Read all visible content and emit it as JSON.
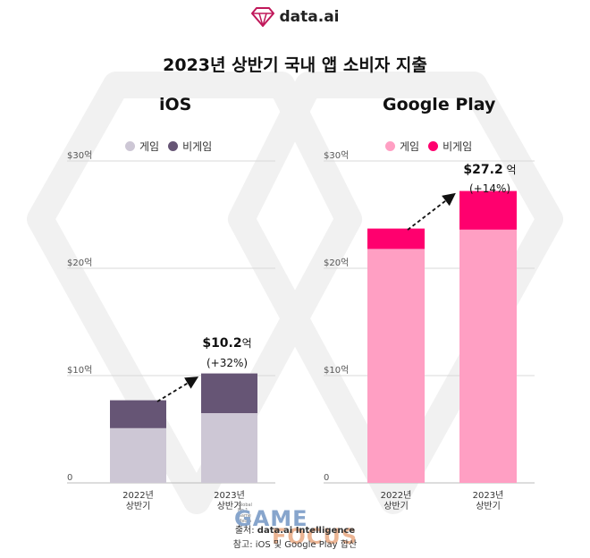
{
  "brand": {
    "name": "data.ai",
    "logo_icon": "diamond-logo-icon"
  },
  "title": "2023년 상반기 국내 앱 소비자 지출",
  "chart_data": [
    {
      "type": "bar",
      "stacked": true,
      "panel_title": "iOS",
      "categories": [
        [
          "2022년",
          "상반기"
        ],
        [
          "2023년",
          "상반기"
        ]
      ],
      "series": [
        {
          "name": "게임",
          "values": [
            5.1,
            6.5
          ],
          "color": "#cdc7d5"
        },
        {
          "name": "비게임",
          "values": [
            2.6,
            3.7
          ],
          "color": "#665575"
        }
      ],
      "y_ticks": [
        {
          "value": 0,
          "label": "0"
        },
        {
          "value": 10,
          "label": "$10억"
        },
        {
          "value": 20,
          "label": "$20억"
        },
        {
          "value": 30,
          "label": "$30억"
        }
      ],
      "ylim": [
        0,
        30
      ],
      "legend_position": "top",
      "grid": true,
      "annotation": {
        "value_strong": "$10.2",
        "value_unit": "억",
        "change": "(+32%)"
      }
    },
    {
      "type": "bar",
      "stacked": true,
      "panel_title": "Google Play",
      "categories": [
        [
          "2022년",
          "상반기"
        ],
        [
          "2023년",
          "상반기"
        ]
      ],
      "series": [
        {
          "name": "게임",
          "values": [
            21.8,
            23.6
          ],
          "color": "#ff9fc3"
        },
        {
          "name": "비게임",
          "values": [
            1.9,
            3.6
          ],
          "color": "#ff006e"
        }
      ],
      "y_ticks": [
        {
          "value": 0,
          "label": "0"
        },
        {
          "value": 10,
          "label": "$10억"
        },
        {
          "value": 20,
          "label": "$20억"
        },
        {
          "value": 30,
          "label": "$30억"
        }
      ],
      "ylim": [
        0,
        30
      ],
      "legend_position": "top",
      "grid": true,
      "annotation": {
        "value_strong": "$27.2",
        "value_unit": " 억",
        "change": "(+14%)"
      }
    }
  ],
  "footer": {
    "source_label": "출처:",
    "source_value": "data.ai Intelligence",
    "note": "참고: iOS 및 Google Play 합산"
  },
  "watermark_logo": {
    "line1": "GAME",
    "line2": "FOCUS",
    "tagline": "Global No.1 Game Media"
  }
}
